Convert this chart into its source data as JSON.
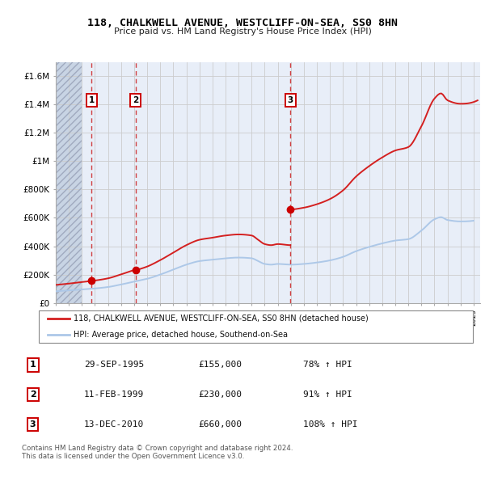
{
  "title": "118, CHALKWELL AVENUE, WESTCLIFF-ON-SEA, SS0 8HN",
  "subtitle": "Price paid vs. HM Land Registry's House Price Index (HPI)",
  "hpi_line_color": "#adc8e8",
  "price_line_color": "#d42020",
  "sale_marker_color": "#cc0000",
  "sale_points": [
    {
      "year": 1995.75,
      "price": 155000,
      "label": "1"
    },
    {
      "year": 1999.12,
      "price": 230000,
      "label": "2"
    },
    {
      "year": 2010.96,
      "price": 660000,
      "label": "3"
    }
  ],
  "sale_vline_color": "#cc2222",
  "label_box_color": "#ffffff",
  "label_box_edge": "#cc0000",
  "legend_entries": [
    "118, CHALKWELL AVENUE, WESTCLIFF-ON-SEA, SS0 8HN (detached house)",
    "HPI: Average price, detached house, Southend-on-Sea"
  ],
  "table_rows": [
    [
      "1",
      "29-SEP-1995",
      "£155,000",
      "78% ↑ HPI"
    ],
    [
      "2",
      "11-FEB-1999",
      "£230,000",
      "91% ↑ HPI"
    ],
    [
      "3",
      "13-DEC-2010",
      "£660,000",
      "108% ↑ HPI"
    ]
  ],
  "footer": "Contains HM Land Registry data © Crown copyright and database right 2024.\nThis data is licensed under the Open Government Licence v3.0.",
  "ylim": [
    0,
    1700000
  ],
  "yticks": [
    0,
    200000,
    400000,
    600000,
    800000,
    1000000,
    1200000,
    1400000,
    1600000
  ],
  "ytick_labels": [
    "£0",
    "£200K",
    "£400K",
    "£600K",
    "£800K",
    "£1M",
    "£1.2M",
    "£1.4M",
    "£1.6M"
  ],
  "grid_color": "#cccccc",
  "plot_bg": "#e8eef8",
  "hatch_color": "#c8d4e4"
}
